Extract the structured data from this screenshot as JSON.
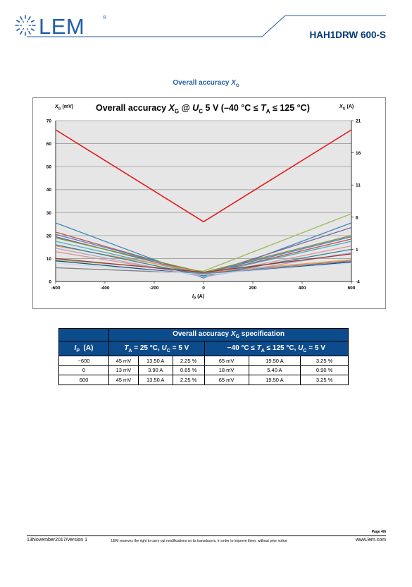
{
  "header": {
    "logo_text": "LEM",
    "logo_reg": "®",
    "part_number": "HAH1DRW 600-S"
  },
  "caption": "Overall accuracy XG",
  "chart_data": {
    "type": "line",
    "title": "Overall accuracy XG @ UC 5 V (−40 °C ≤ TA ≤ 125 °C)",
    "ylabel": "XG (mV)",
    "ylabel_right": "XG (A)",
    "xlabel": "IP (A)",
    "xlim": [
      -600,
      600
    ],
    "ylim": [
      0,
      70
    ],
    "ylim_right": [
      -4,
      21
    ],
    "x_ticks": [
      "-600",
      "-400",
      "-200",
      "0",
      "200",
      "400",
      "600"
    ],
    "y_ticks": [
      "0",
      "10",
      "20",
      "30",
      "40",
      "50",
      "60",
      "70"
    ],
    "y_ticks_right": [
      "-4",
      "1",
      "6",
      "11",
      "16",
      "21"
    ],
    "grid": true,
    "background": "#e6e6e6",
    "series": [
      {
        "color": "#e41a1c",
        "x": [
          -600,
          0,
          600
        ],
        "values": [
          66,
          26,
          66
        ]
      },
      {
        "color": "#3b8ab8",
        "x": [
          -600,
          0,
          600
        ],
        "values": [
          25.5,
          1.5,
          25.5
        ]
      },
      {
        "color": "#9bbb59",
        "x": [
          -600,
          0,
          600
        ],
        "values": [
          9.5,
          4.5,
          29.5
        ]
      },
      {
        "color": "#c0504d",
        "x": [
          -600,
          0,
          600
        ],
        "values": [
          21.5,
          3,
          18.5
        ]
      },
      {
        "color": "#4f81bd",
        "x": [
          -600,
          0,
          600
        ],
        "values": [
          20.5,
          3.5,
          19.5
        ]
      },
      {
        "color": "#8064a2",
        "x": [
          -600,
          0,
          600
        ],
        "values": [
          19.5,
          3,
          23.5
        ]
      },
      {
        "color": "#4bacc6",
        "x": [
          -600,
          0,
          600
        ],
        "values": [
          17.5,
          3,
          17.5
        ]
      },
      {
        "color": "#f79646",
        "x": [
          -600,
          0,
          600
        ],
        "values": [
          15.5,
          4,
          9.5
        ]
      },
      {
        "color": "#d99694",
        "x": [
          -600,
          0,
          600
        ],
        "values": [
          13,
          2.5,
          15.5
        ]
      },
      {
        "color": "#1f497d",
        "x": [
          -600,
          0,
          600
        ],
        "values": [
          9,
          3,
          8.5
        ]
      },
      {
        "color": "#7f7f7f",
        "x": [
          -600,
          0,
          600
        ],
        "values": [
          6,
          3.5,
          9
        ]
      },
      {
        "color": "#b3a2c7",
        "x": [
          -600,
          0,
          600
        ],
        "values": [
          14.5,
          2,
          12.5
        ]
      },
      {
        "color": "#77933c",
        "x": [
          -600,
          0,
          600
        ],
        "values": [
          19,
          4,
          20
        ]
      },
      {
        "color": "#31859c",
        "x": [
          -600,
          0,
          600
        ],
        "values": [
          16,
          2.5,
          14
        ]
      },
      {
        "color": "#953735",
        "x": [
          -600,
          0,
          600
        ],
        "values": [
          10,
          4,
          12
        ]
      },
      {
        "color": "#c6d9f1",
        "x": [
          -600,
          0,
          600
        ],
        "values": [
          8,
          3,
          8
        ]
      }
    ]
  },
  "table": {
    "header_main": "Overall accuracy XG specification",
    "col_ip": "IP (A)",
    "group1": "TA = 25 °C, UC = 5 V",
    "group2": "−40 °C ≤ TA ≤ 125 °C, UC = 5 V",
    "rows": [
      [
        "−600",
        "45 mV",
        "13.50 A",
        "2.25 %",
        "65 mV",
        "19.50 A",
        "3.25 %"
      ],
      [
        "0",
        "13 mV",
        "3.90 A",
        "0.65 %",
        "18 mV",
        "5.40 A",
        "0.90 %"
      ],
      [
        "600",
        "45 mV",
        "13.50 A",
        "2.25 %",
        "65 mV",
        "19.50 A",
        "3.25 %"
      ]
    ]
  },
  "footer": {
    "page": "Page 4/6",
    "date": "13November2017/version 1",
    "note": "LEM reserves the right to carry out modifications on its transducers, in order to improve them, without prior notice",
    "url": "www.lem.com"
  },
  "colors": {
    "brand_blue": "#1f5fa8",
    "table_header": "#0d4c8c",
    "header_rule": "#2a5c9a"
  }
}
